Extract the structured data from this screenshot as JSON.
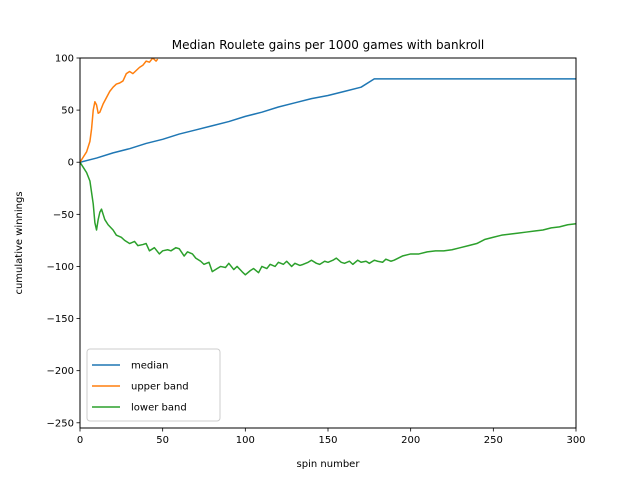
{
  "chart_data": {
    "type": "line",
    "title": "Median Roulete gains per 1000 games with bankroll",
    "xlabel": "spin number",
    "ylabel": "cumulative winnings",
    "xlim": [
      0,
      300
    ],
    "ylim": [
      -255,
      100
    ],
    "xticks": [
      0,
      50,
      100,
      150,
      200,
      250,
      300
    ],
    "yticks": [
      100,
      50,
      0,
      -50,
      -100,
      -150,
      -200,
      -250
    ],
    "tick_labels_x": [
      "0",
      "50",
      "100",
      "150",
      "200",
      "250",
      "300"
    ],
    "tick_labels_y": [
      "100",
      "50",
      "0",
      "−50",
      "−100",
      "−150",
      "−200",
      "−250"
    ],
    "grid": false,
    "legend_position": "lower-left",
    "series": [
      {
        "name": "median",
        "color": "#1f77b4",
        "x": [
          0,
          10,
          20,
          30,
          40,
          50,
          60,
          70,
          80,
          90,
          100,
          110,
          120,
          130,
          140,
          150,
          160,
          170,
          178,
          180,
          200,
          220,
          240,
          260,
          280,
          300
        ],
        "y": [
          0,
          4,
          9,
          13,
          18,
          22,
          27,
          31,
          35,
          39,
          44,
          48,
          53,
          57,
          61,
          64,
          68,
          72,
          80,
          80,
          80,
          80,
          80,
          80,
          80,
          80
        ]
      },
      {
        "name": "upper band",
        "color": "#ff7f0e",
        "x": [
          0,
          2,
          4,
          6,
          7,
          8,
          9,
          10,
          11,
          12,
          14,
          16,
          18,
          20,
          22,
          24,
          26,
          28,
          30,
          32,
          34,
          36,
          38,
          40,
          42,
          44,
          46,
          47
        ],
        "y": [
          0,
          5,
          10,
          20,
          32,
          50,
          58,
          55,
          47,
          48,
          56,
          62,
          68,
          72,
          75,
          76,
          78,
          85,
          87,
          85,
          88,
          91,
          93,
          97,
          96,
          100,
          97,
          99
        ]
      },
      {
        "name": "lower band",
        "color": "#2ca02c",
        "x": [
          0,
          2,
          4,
          6,
          8,
          9,
          10,
          11,
          12,
          13,
          15,
          17,
          20,
          22,
          25,
          27,
          30,
          33,
          35,
          38,
          40,
          42,
          45,
          48,
          50,
          53,
          55,
          58,
          60,
          63,
          65,
          68,
          70,
          73,
          75,
          78,
          80,
          83,
          85,
          88,
          90,
          93,
          95,
          98,
          100,
          103,
          105,
          108,
          110,
          113,
          115,
          118,
          120,
          123,
          125,
          128,
          130,
          133,
          135,
          138,
          140,
          143,
          145,
          148,
          150,
          153,
          155,
          158,
          160,
          163,
          165,
          168,
          170,
          173,
          175,
          178,
          180,
          183,
          185,
          188,
          190,
          195,
          200,
          205,
          210,
          215,
          220,
          225,
          230,
          235,
          240,
          245,
          250,
          255,
          260,
          265,
          270,
          275,
          280,
          285,
          290,
          295,
          300
        ],
        "y": [
          0,
          -5,
          -10,
          -18,
          -40,
          -58,
          -65,
          -55,
          -48,
          -45,
          -55,
          -60,
          -65,
          -70,
          -72,
          -75,
          -78,
          -76,
          -80,
          -79,
          -78,
          -85,
          -82,
          -88,
          -85,
          -84,
          -85,
          -82,
          -83,
          -90,
          -86,
          -88,
          -92,
          -95,
          -98,
          -96,
          -105,
          -102,
          -100,
          -101,
          -97,
          -103,
          -100,
          -105,
          -108,
          -104,
          -102,
          -106,
          -100,
          -102,
          -98,
          -100,
          -96,
          -98,
          -95,
          -100,
          -97,
          -99,
          -98,
          -96,
          -94,
          -97,
          -98,
          -95,
          -96,
          -94,
          -92,
          -96,
          -97,
          -95,
          -98,
          -94,
          -96,
          -95,
          -97,
          -94,
          -95,
          -96,
          -93,
          -95,
          -94,
          -90,
          -88,
          -88,
          -86,
          -85,
          -85,
          -84,
          -82,
          -80,
          -78,
          -74,
          -72,
          -70,
          -69,
          -68,
          -67,
          -66,
          -65,
          -63,
          -62,
          -60,
          -59
        ]
      }
    ]
  }
}
